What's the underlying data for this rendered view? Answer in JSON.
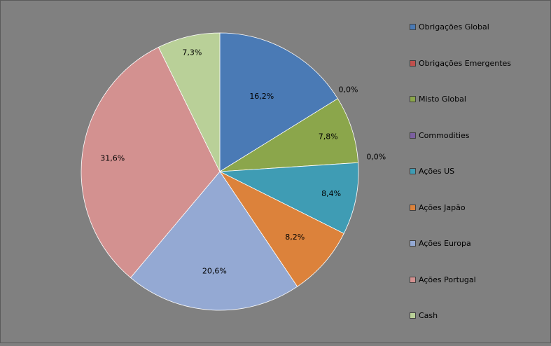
{
  "chart_data": {
    "type": "pie",
    "categories": [
      "Obrigações Global",
      "Obrigações Emergentes",
      "Misto Global",
      "Commodities",
      "Ações US",
      "Ações Japão",
      "Ações Europa",
      "Ações Portugal",
      "Cash"
    ],
    "values": [
      16.2,
      0.0,
      7.8,
      0.0,
      8.4,
      8.2,
      20.6,
      31.6,
      7.3
    ],
    "labels": [
      "16,2%",
      "0,0%",
      "7,8%",
      "0,0%",
      "8,4%",
      "8,2%",
      "20,6%",
      "31,6%",
      "7,3%"
    ],
    "colors": [
      "#4a7ab5",
      "#c0504d",
      "#8ba64b",
      "#7b5fa0",
      "#3f9cb4",
      "#dc823b",
      "#94a9d3",
      "#d39190",
      "#b9d098"
    ],
    "legend_position": "right",
    "start_angle": "12 o'clock",
    "direction": "clockwise"
  }
}
